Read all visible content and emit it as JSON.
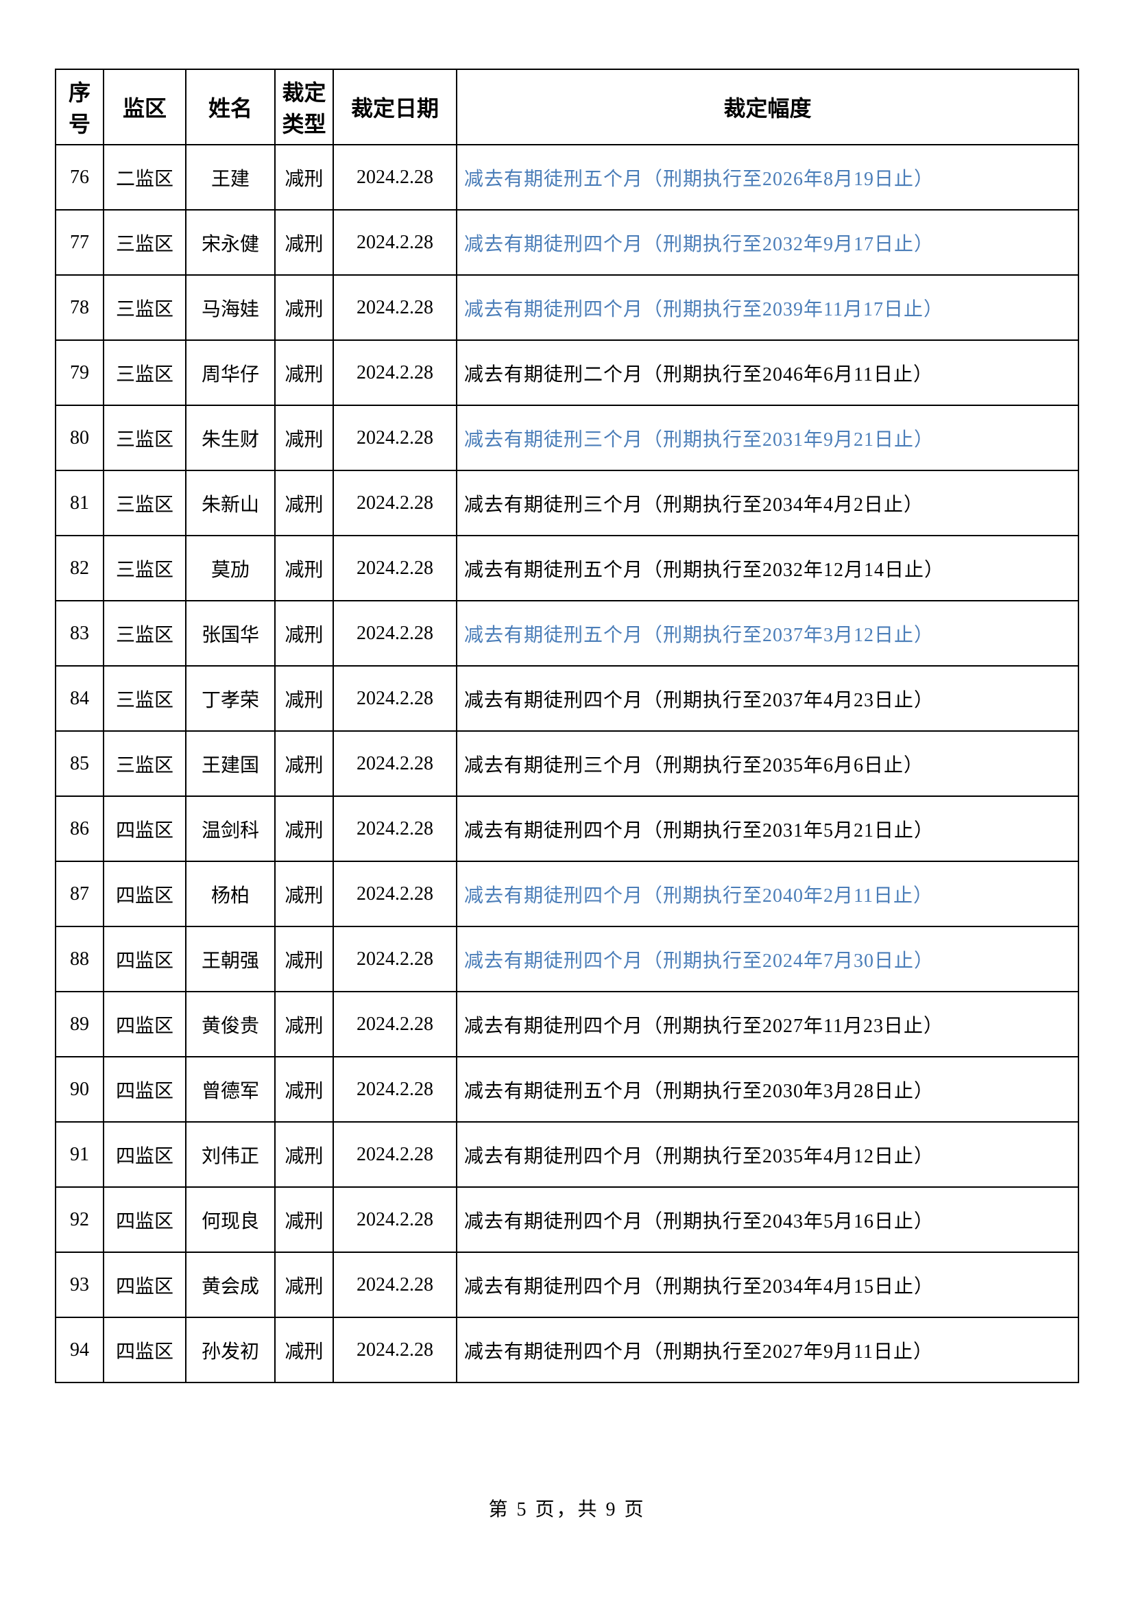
{
  "columns": {
    "seq": "序\n号",
    "district": "监区",
    "name": "姓名",
    "type": "裁定\n类型",
    "date": "裁定日期",
    "amplitude": "裁定幅度"
  },
  "rows": [
    {
      "seq": "76",
      "district": "二监区",
      "name": "王建",
      "type": "减刑",
      "date": "2024.2.28",
      "amplitude": "减去有期徒刑五个月（刑期执行至2026年8月19日止）",
      "link": true
    },
    {
      "seq": "77",
      "district": "三监区",
      "name": "宋永健",
      "type": "减刑",
      "date": "2024.2.28",
      "amplitude": "减去有期徒刑四个月（刑期执行至2032年9月17日止）",
      "link": true
    },
    {
      "seq": "78",
      "district": "三监区",
      "name": "马海娃",
      "type": "减刑",
      "date": "2024.2.28",
      "amplitude": "减去有期徒刑四个月（刑期执行至2039年11月17日止）",
      "link": true
    },
    {
      "seq": "79",
      "district": "三监区",
      "name": "周华仔",
      "type": "减刑",
      "date": "2024.2.28",
      "amplitude": "减去有期徒刑二个月（刑期执行至2046年6月11日止）",
      "link": false
    },
    {
      "seq": "80",
      "district": "三监区",
      "name": "朱生财",
      "type": "减刑",
      "date": "2024.2.28",
      "amplitude": "减去有期徒刑三个月（刑期执行至2031年9月21日止）",
      "link": true
    },
    {
      "seq": "81",
      "district": "三监区",
      "name": "朱新山",
      "type": "减刑",
      "date": "2024.2.28",
      "amplitude": "减去有期徒刑三个月（刑期执行至2034年4月2日止）",
      "link": false
    },
    {
      "seq": "82",
      "district": "三监区",
      "name": "莫劢",
      "type": "减刑",
      "date": "2024.2.28",
      "amplitude": "减去有期徒刑五个月（刑期执行至2032年12月14日止）",
      "link": false
    },
    {
      "seq": "83",
      "district": "三监区",
      "name": "张国华",
      "type": "减刑",
      "date": "2024.2.28",
      "amplitude": "减去有期徒刑五个月（刑期执行至2037年3月12日止）",
      "link": true
    },
    {
      "seq": "84",
      "district": "三监区",
      "name": "丁孝荣",
      "type": "减刑",
      "date": "2024.2.28",
      "amplitude": "减去有期徒刑四个月（刑期执行至2037年4月23日止）",
      "link": false
    },
    {
      "seq": "85",
      "district": "三监区",
      "name": "王建国",
      "type": "减刑",
      "date": "2024.2.28",
      "amplitude": "减去有期徒刑三个月（刑期执行至2035年6月6日止）",
      "link": false
    },
    {
      "seq": "86",
      "district": "四监区",
      "name": "温剑科",
      "type": "减刑",
      "date": "2024.2.28",
      "amplitude": "减去有期徒刑四个月（刑期执行至2031年5月21日止）",
      "link": false
    },
    {
      "seq": "87",
      "district": "四监区",
      "name": "杨柏",
      "type": "减刑",
      "date": "2024.2.28",
      "amplitude": "减去有期徒刑四个月（刑期执行至2040年2月11日止）",
      "link": true
    },
    {
      "seq": "88",
      "district": "四监区",
      "name": "王朝强",
      "type": "减刑",
      "date": "2024.2.28",
      "amplitude": "减去有期徒刑四个月（刑期执行至2024年7月30日止）",
      "link": true
    },
    {
      "seq": "89",
      "district": "四监区",
      "name": "黄俊贵",
      "type": "减刑",
      "date": "2024.2.28",
      "amplitude": "减去有期徒刑四个月（刑期执行至2027年11月23日止）",
      "link": false
    },
    {
      "seq": "90",
      "district": "四监区",
      "name": "曾德军",
      "type": "减刑",
      "date": "2024.2.28",
      "amplitude": "减去有期徒刑五个月（刑期执行至2030年3月28日止）",
      "link": false
    },
    {
      "seq": "91",
      "district": "四监区",
      "name": "刘伟正",
      "type": "减刑",
      "date": "2024.2.28",
      "amplitude": "减去有期徒刑四个月（刑期执行至2035年4月12日止）",
      "link": false
    },
    {
      "seq": "92",
      "district": "四监区",
      "name": "何现良",
      "type": "减刑",
      "date": "2024.2.28",
      "amplitude": "减去有期徒刑四个月（刑期执行至2043年5月16日止）",
      "link": false
    },
    {
      "seq": "93",
      "district": "四监区",
      "name": "黄会成",
      "type": "减刑",
      "date": "2024.2.28",
      "amplitude": "减去有期徒刑四个月（刑期执行至2034年4月15日止）",
      "link": false
    },
    {
      "seq": "94",
      "district": "四监区",
      "name": "孙发初",
      "type": "减刑",
      "date": "2024.2.28",
      "amplitude": "减去有期徒刑四个月（刑期执行至2027年9月11日止）",
      "link": false
    }
  ],
  "footer": "第 5 页，共 9 页",
  "colors": {
    "link": "#4a7db8",
    "text": "#000000",
    "border": "#000000",
    "background": "#ffffff"
  }
}
